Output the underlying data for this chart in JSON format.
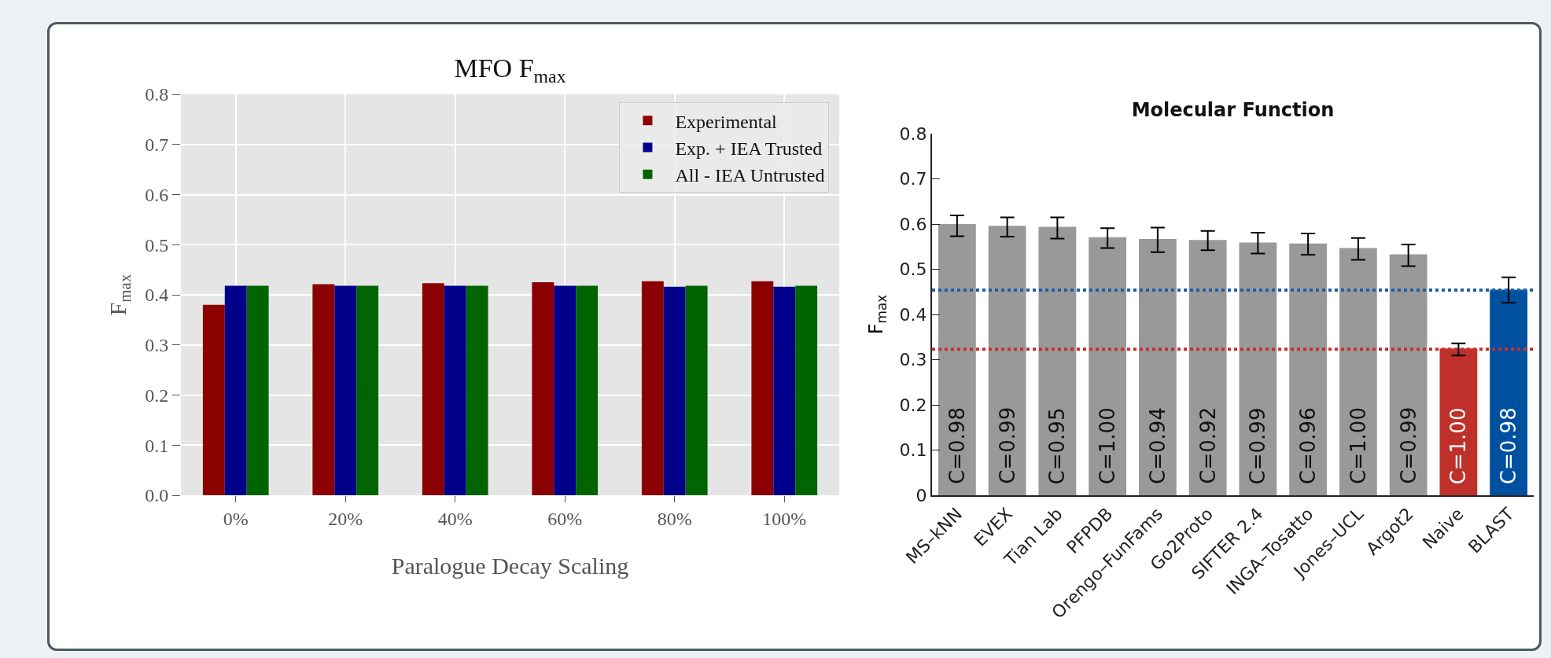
{
  "chart_data": [
    {
      "type": "bar",
      "title": "MFO F$_{max}$",
      "xlabel": "Paralogue Decay Scaling",
      "ylabel": "F$_{max}$",
      "categories": [
        "0%",
        "20%",
        "40%",
        "60%",
        "80%",
        "100%"
      ],
      "series": [
        {
          "name": "Experimental",
          "color": "#8b0000",
          "values": [
            0.38,
            0.421,
            0.423,
            0.425,
            0.427,
            0.427
          ]
        },
        {
          "name": "Exp. + IEA Trusted",
          "color": "#00008b",
          "values": [
            0.418,
            0.418,
            0.418,
            0.418,
            0.416,
            0.416
          ]
        },
        {
          "name": "All - IEA Untrusted",
          "color": "#006400",
          "values": [
            0.418,
            0.418,
            0.418,
            0.418,
            0.418,
            0.418
          ]
        }
      ],
      "ylim": [
        0,
        0.8
      ],
      "yticks": [
        {
          "value": 0,
          "label": "0.0"
        },
        0.1,
        0.2,
        0.3,
        0.4,
        0.5,
        0.6,
        0.7,
        0.8
      ],
      "grid": true,
      "legend": "top right"
    },
    {
      "type": "bar",
      "title": "Molecular Function",
      "ylabel": "F$_{max}$",
      "categories": [
        "MS–kNN",
        "EVEX",
        "Tian Lab",
        "PFPDB",
        "Orengo–FunFams",
        "Go2Proto",
        "SIFTER 2.4",
        "INGA–Tosatto",
        "Jones–UCL",
        "Argot2",
        "Naive",
        "BLAST"
      ],
      "values": [
        0.6,
        0.596,
        0.594,
        0.571,
        0.567,
        0.565,
        0.559,
        0.557,
        0.547,
        0.533,
        0.325,
        0.455
      ],
      "colors": [
        "#999999",
        "#999999",
        "#999999",
        "#999999",
        "#999999",
        "#999999",
        "#999999",
        "#999999",
        "#999999",
        "#999999",
        "#c0302b",
        "#0050a0"
      ],
      "errors": [
        [
          0.573,
          0.619
        ],
        [
          0.572,
          0.615
        ],
        [
          0.568,
          0.615
        ],
        [
          0.547,
          0.591
        ],
        [
          0.538,
          0.592
        ],
        [
          0.542,
          0.585
        ],
        [
          0.535,
          0.581
        ],
        [
          0.532,
          0.579
        ],
        [
          0.521,
          0.569
        ],
        [
          0.507,
          0.555
        ],
        [
          0.309,
          0.336
        ],
        [
          0.426,
          0.482
        ]
      ],
      "annotations": [
        {
          "text": "C=0.98",
          "x": "MS–kNN",
          "y": 0
        },
        {
          "text": "C=0.99",
          "x": "EVEX",
          "y": 0
        },
        {
          "text": "C=0.95",
          "x": "Tian Lab",
          "y": 0
        },
        {
          "text": "C=1.00",
          "x": "PFPDB",
          "y": 0
        },
        {
          "text": "C=0.94",
          "x": "Orengo–FunFams",
          "y": 0
        },
        {
          "text": "C=0.92",
          "x": "Go2Proto",
          "y": 0
        },
        {
          "text": "C=0.99",
          "x": "SIFTER 2.4",
          "y": 0
        },
        {
          "text": "C=0.96",
          "x": "INGA–Tosatto",
          "y": 0
        },
        {
          "text": "C=1.00",
          "x": "Jones–UCL",
          "y": 0
        },
        {
          "text": "C=0.99",
          "x": "Argot2",
          "y": 0
        },
        {
          "text": "C=1.00",
          "x": "Naive",
          "y": 0
        },
        {
          "text": "C=0.98",
          "x": "BLAST",
          "y": 0
        }
      ],
      "ylim": [
        0,
        0.8
      ],
      "yticks": [
        0,
        0.1,
        0.2,
        0.3,
        0.4,
        0.5,
        0.6,
        0.7,
        0.8
      ],
      "ref_lines": [
        {
          "axis": "y",
          "value": 0.454,
          "color": "#1f5fa8",
          "line_style": "dotted"
        },
        {
          "axis": "y",
          "value": 0.323,
          "color": "#c8302c",
          "line_style": "dotted"
        }
      ]
    }
  ]
}
